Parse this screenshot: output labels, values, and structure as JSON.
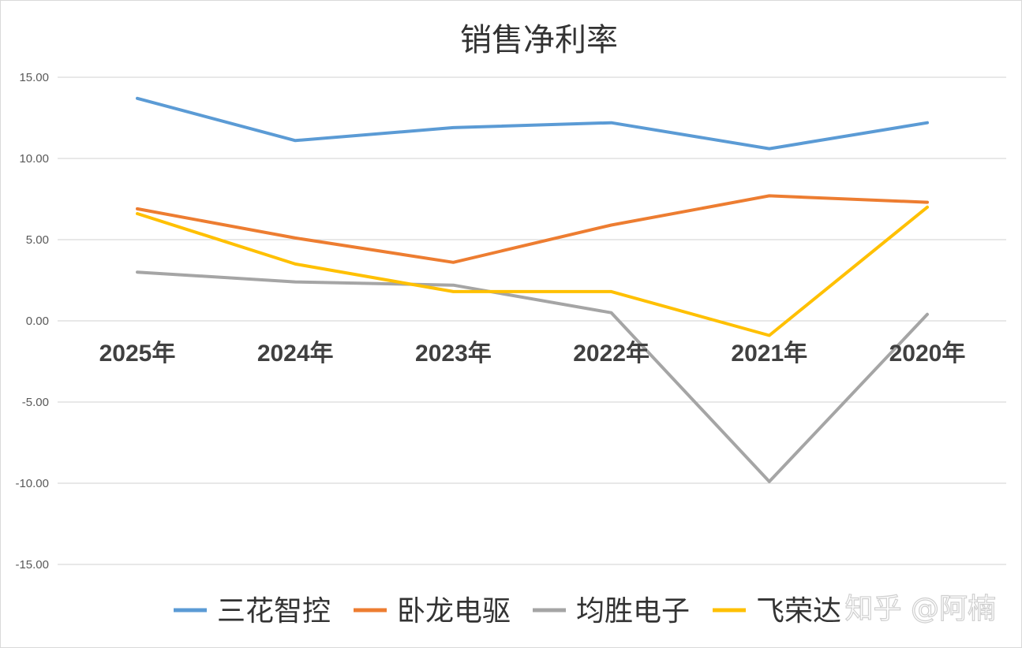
{
  "chart_data": {
    "type": "line",
    "title": "销售净利率",
    "categories": [
      "2025年",
      "2024年",
      "2023年",
      "2022年",
      "2021年",
      "2020年"
    ],
    "series": [
      {
        "name": "三花智控",
        "color": "#5B9BD5",
        "values": [
          13.7,
          11.1,
          11.9,
          12.2,
          10.6,
          12.2
        ]
      },
      {
        "name": "卧龙电驱",
        "color": "#ED7D31",
        "values": [
          6.9,
          5.1,
          3.6,
          5.9,
          7.7,
          7.3
        ]
      },
      {
        "name": "均胜电子",
        "color": "#A5A5A5",
        "values": [
          3.0,
          2.4,
          2.2,
          0.5,
          -9.9,
          0.4
        ]
      },
      {
        "name": "飞荣达",
        "color": "#FFC000",
        "values": [
          6.6,
          3.5,
          1.8,
          1.8,
          -0.9,
          7.0
        ]
      }
    ],
    "y_ticks": [
      "15.00",
      "10.00",
      "5.00",
      "0.00",
      "-5.00",
      "-10.00",
      "-15.00"
    ],
    "ylim": [
      -15,
      15
    ],
    "grid": true,
    "legend": "bottom"
  },
  "watermark": "知乎 @阿楠"
}
